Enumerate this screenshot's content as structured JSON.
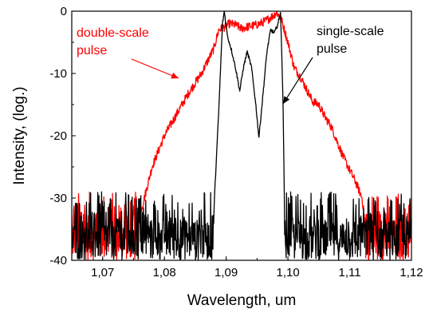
{
  "chart_data": {
    "type": "line",
    "title": "",
    "xlabel": "Wavelength, um",
    "ylabel": "Intensity, (log.)",
    "xlim": [
      1.065,
      1.12
    ],
    "ylim": [
      -40,
      0
    ],
    "x_ticks": [
      "1,07",
      "1,08",
      "1,09",
      "1,10",
      "1,11",
      "1,12"
    ],
    "x_tick_values": [
      1.07,
      1.08,
      1.09,
      1.1,
      1.11,
      1.12
    ],
    "y_ticks": [
      "0",
      "-10",
      "-20",
      "-30",
      "-40"
    ],
    "y_tick_values": [
      0,
      -10,
      -20,
      -30,
      -40
    ],
    "grid": false,
    "series": [
      {
        "color": "#ff0000",
        "noise_floor": true,
        "x": [
          1.065,
          1.07,
          1.073,
          1.0755,
          1.0765,
          1.078,
          1.08,
          1.082,
          1.084,
          1.086,
          1.087,
          1.088,
          1.0888,
          1.0898,
          1.0905,
          1.0915,
          1.0925,
          1.0935,
          1.0945,
          1.0955,
          1.0965,
          1.0975,
          1.0982,
          1.099,
          1.1,
          1.101,
          1.102,
          1.103,
          1.104,
          1.105,
          1.106,
          1.107,
          1.108,
          1.109,
          1.11,
          1.111,
          1.112,
          1.1125,
          1.114,
          1.116,
          1.118,
          1.12
        ],
        "y": [
          -37,
          -37,
          -37,
          -34,
          -31,
          -25,
          -20,
          -16.5,
          -13,
          -10,
          -8,
          -6,
          -3,
          -2.5,
          -2,
          -2.2,
          -2.8,
          -2.5,
          -2.3,
          -2.0,
          -1.5,
          -0.8,
          -0.2,
          -1.5,
          -5,
          -9,
          -10.5,
          -12.5,
          -14.5,
          -15,
          -17,
          -18.5,
          -21,
          -23.5,
          -25.5,
          -27.5,
          -30,
          -34,
          -37,
          -37,
          -37,
          -37
        ]
      },
      {
        "color": "#000000",
        "noise_floor": true,
        "x": [
          1.065,
          1.0878,
          1.0882,
          1.0888,
          1.0894,
          1.0897,
          1.0902,
          1.0908,
          1.0915,
          1.0922,
          1.0928,
          1.0934,
          1.0941,
          1.0948,
          1.0953,
          1.0959,
          1.0966,
          1.0972,
          1.0978,
          1.0984,
          1.0988,
          1.0992,
          1.0995,
          1.1,
          1.12
        ],
        "y": [
          -37,
          -37,
          -28,
          -16,
          -2,
          0,
          -4,
          -6,
          -9,
          -12.8,
          -9,
          -6.5,
          -9,
          -15,
          -20.3,
          -14,
          -6.5,
          -3,
          -3.5,
          -2,
          0,
          -14,
          -36,
          -37,
          -37
        ]
      }
    ],
    "annotations": [
      {
        "lines": [
          "double-scale",
          "pulse"
        ],
        "color": "#ff0000"
      },
      {
        "lines": [
          "single-scale",
          "pulse"
        ],
        "color": "#000000"
      }
    ]
  }
}
